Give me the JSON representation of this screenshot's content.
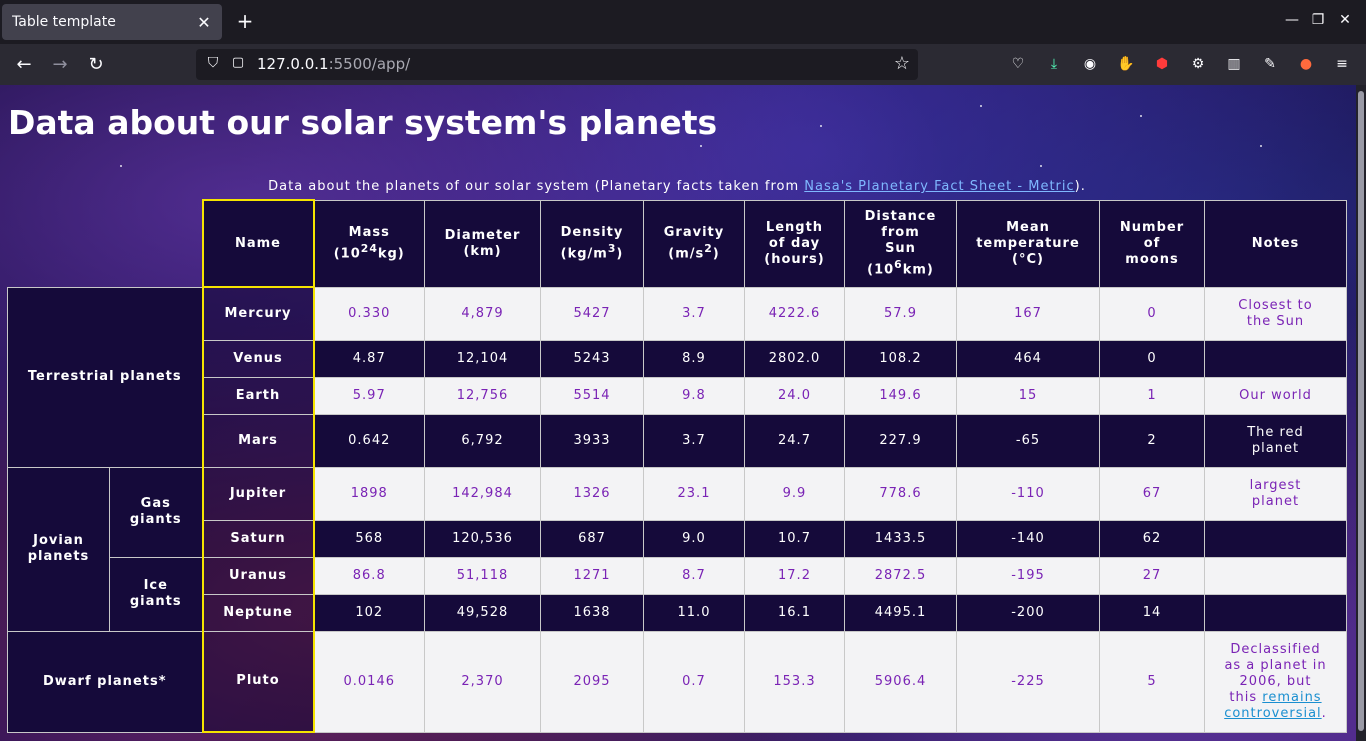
{
  "browser": {
    "tab_title": "Table template",
    "url_host": "127.0.0.1",
    "url_rest": ":5500/app/"
  },
  "page": {
    "title": "Data about our solar system's planets",
    "caption_text": "Data about the planets of our solar system (Planetary facts taken from ",
    "caption_link": "Nasa's Planetary Fact Sheet - Metric",
    "caption_end": ")."
  },
  "table": {
    "headers": {
      "name": "Name",
      "mass_a": "Mass",
      "mass_b": "(10",
      "mass_sup": "24",
      "mass_c": "kg)",
      "diameter_a": "Diameter",
      "diameter_b": "(km)",
      "density_a": "Density",
      "density_b": "(kg/m",
      "density_sup": "3",
      "density_c": ")",
      "gravity_a": "Gravity",
      "gravity_b": "(m/s",
      "gravity_sup": "2",
      "gravity_c": ")",
      "length_a": "Length",
      "length_b": "of day",
      "length_c": "(hours)",
      "distance_a": "Distance",
      "distance_b": "from",
      "distance_c": "Sun",
      "distance_d": "(10",
      "distance_sup": "6",
      "distance_e": "km)",
      "temp_a": "Mean",
      "temp_b": "temperature",
      "temp_c": "(°C)",
      "moons_a": "Number",
      "moons_b": "of",
      "moons_c": "moons",
      "notes": "Notes"
    },
    "groups": {
      "terrestrial": "Terrestrial planets",
      "jovian_a": "Jovian",
      "jovian_b": "planets",
      "gas_a": "Gas",
      "gas_b": "giants",
      "ice_a": "Ice",
      "ice_b": "giants",
      "dwarf": "Dwarf planets*"
    },
    "rows": [
      {
        "name": "Mercury",
        "mass": "0.330",
        "diameter": "4,879",
        "density": "5427",
        "gravity": "3.7",
        "day": "4222.6",
        "distance": "57.9",
        "temp": "167",
        "moons": "0",
        "note_a": "Closest to",
        "note_b": "the Sun"
      },
      {
        "name": "Venus",
        "mass": "4.87",
        "diameter": "12,104",
        "density": "5243",
        "gravity": "8.9",
        "day": "2802.0",
        "distance": "108.2",
        "temp": "464",
        "moons": "0"
      },
      {
        "name": "Earth",
        "mass": "5.97",
        "diameter": "12,756",
        "density": "5514",
        "gravity": "9.8",
        "day": "24.0",
        "distance": "149.6",
        "temp": "15",
        "moons": "1",
        "note_a": "Our world"
      },
      {
        "name": "Mars",
        "mass": "0.642",
        "diameter": "6,792",
        "density": "3933",
        "gravity": "3.7",
        "day": "24.7",
        "distance": "227.9",
        "temp": "-65",
        "moons": "2",
        "note_a": "The red",
        "note_b": "planet"
      },
      {
        "name": "Jupiter",
        "mass": "1898",
        "diameter": "142,984",
        "density": "1326",
        "gravity": "23.1",
        "day": "9.9",
        "distance": "778.6",
        "temp": "-110",
        "moons": "67",
        "note_a": "largest",
        "note_b": "planet"
      },
      {
        "name": "Saturn",
        "mass": "568",
        "diameter": "120,536",
        "density": "687",
        "gravity": "9.0",
        "day": "10.7",
        "distance": "1433.5",
        "temp": "-140",
        "moons": "62"
      },
      {
        "name": "Uranus",
        "mass": "86.8",
        "diameter": "51,118",
        "density": "1271",
        "gravity": "8.7",
        "day": "17.2",
        "distance": "2872.5",
        "temp": "-195",
        "moons": "27"
      },
      {
        "name": "Neptune",
        "mass": "102",
        "diameter": "49,528",
        "density": "1638",
        "gravity": "11.0",
        "day": "16.1",
        "distance": "4495.1",
        "temp": "-200",
        "moons": "14"
      },
      {
        "name": "Pluto",
        "mass": "0.0146",
        "diameter": "2,370",
        "density": "2095",
        "gravity": "0.7",
        "day": "153.3",
        "distance": "5906.4",
        "temp": "-225",
        "moons": "5",
        "note_a": "Declassified",
        "note_b": "as a planet in",
        "note_c": "2006, but",
        "note_d": "this ",
        "note_link_a": "remains",
        "note_link_b": "controversial",
        "note_e": "."
      }
    ]
  },
  "colors": {
    "header_bg": "#150a3a",
    "light_row_bg": "#f3f3f5",
    "light_row_text": "#7a23b5",
    "name_col_border": "#f5e400"
  }
}
